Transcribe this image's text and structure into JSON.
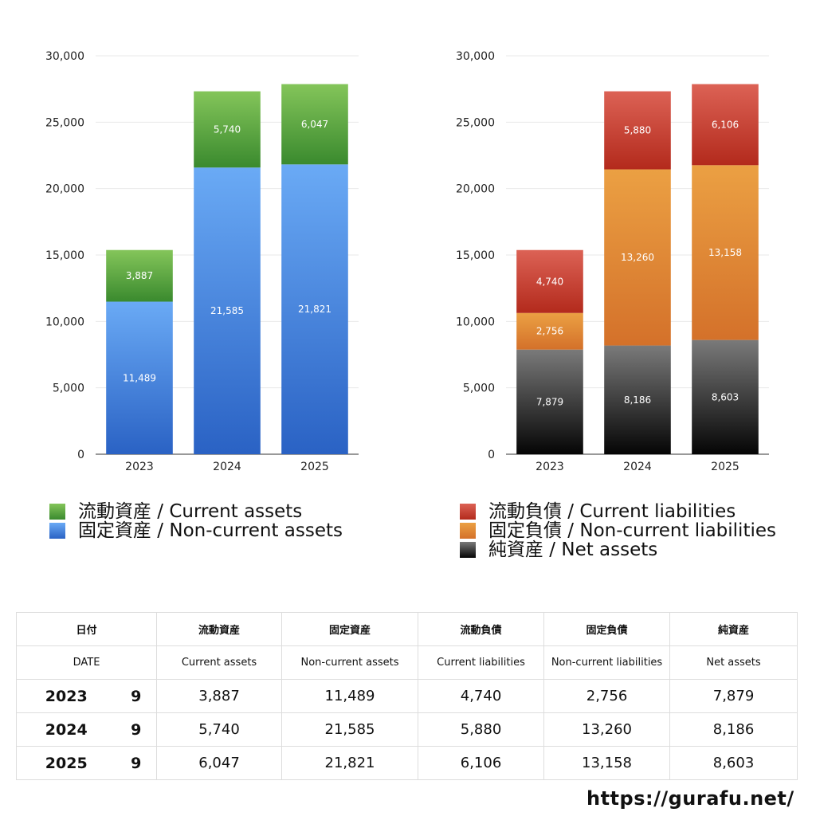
{
  "chart_data": [
    {
      "type": "bar",
      "stacked": true,
      "categories": [
        "2023",
        "2024",
        "2025"
      ],
      "ylim": [
        0,
        30000
      ],
      "yticks": [
        "0",
        "5,000",
        "10,000",
        "15,000",
        "20,000",
        "25,000",
        "30,000"
      ],
      "grid": true,
      "series": [
        {
          "name": "固定資産 / Non-current assets",
          "values": [
            11489,
            21585,
            21821
          ],
          "labels": [
            "11,489",
            "21,585",
            "21,821"
          ],
          "color_top": "#6aaaf5",
          "color_bottom": "#2a62c4"
        },
        {
          "name": "流動資産 / Current assets",
          "values": [
            3887,
            5740,
            6047
          ],
          "labels": [
            "3,887",
            "5,740",
            "6,047"
          ],
          "color_top": "#84c55a",
          "color_bottom": "#3a8a2e"
        }
      ]
    },
    {
      "type": "bar",
      "stacked": true,
      "categories": [
        "2023",
        "2024",
        "2025"
      ],
      "ylim": [
        0,
        30000
      ],
      "yticks": [
        "0",
        "5,000",
        "10,000",
        "15,000",
        "20,000",
        "25,000",
        "30,000"
      ],
      "grid": true,
      "series": [
        {
          "name": "純資産 / Net assets",
          "values": [
            7879,
            8186,
            8603
          ],
          "labels": [
            "7,879",
            "8,186",
            "8,603"
          ],
          "color_top": "#7a7a7a",
          "color_bottom": "#050505"
        },
        {
          "name": "固定負債 / Non-current liabilities",
          "values": [
            2756,
            13260,
            13158
          ],
          "labels": [
            "2,756",
            "13,260",
            "13,158"
          ],
          "color_top": "#eba043",
          "color_bottom": "#d4712a"
        },
        {
          "name": "流動負債 / Current liabilities",
          "values": [
            4740,
            5880,
            6106
          ],
          "labels": [
            "4,740",
            "5,880",
            "6,106"
          ],
          "color_top": "#dc6255",
          "color_bottom": "#b32a1c"
        }
      ]
    }
  ],
  "legend_left": [
    {
      "label": "流動資産 / Current assets",
      "color_top": "#84c55a",
      "color_bottom": "#3a8a2e"
    },
    {
      "label": "固定資産 / Non-current assets",
      "color_top": "#6aaaf5",
      "color_bottom": "#2a62c4"
    }
  ],
  "legend_right": [
    {
      "label": "流動負債 / Current liabilities",
      "color_top": "#dc6255",
      "color_bottom": "#b32a1c"
    },
    {
      "label": "固定負債 / Non-current liabilities",
      "color_top": "#eba043",
      "color_bottom": "#d4712a"
    },
    {
      "label": "純資産 / Net assets",
      "color_top": "#7a7a7a",
      "color_bottom": "#050505"
    }
  ],
  "table": {
    "header_jp": [
      "日付",
      "流動資産",
      "固定資産",
      "流動負債",
      "固定負債",
      "純資産"
    ],
    "header_en": [
      "DATE",
      "Current assets",
      "Non-current assets",
      "Current liabilities",
      "Non-current liabilities",
      "Net assets"
    ],
    "rows": [
      {
        "year": "2023",
        "month": "9",
        "cells": [
          "3,887",
          "11,489",
          "4,740",
          "2,756",
          "7,879"
        ]
      },
      {
        "year": "2024",
        "month": "9",
        "cells": [
          "5,740",
          "21,585",
          "5,880",
          "13,260",
          "8,186"
        ]
      },
      {
        "year": "2025",
        "month": "9",
        "cells": [
          "6,047",
          "21,821",
          "6,106",
          "13,158",
          "8,603"
        ]
      }
    ]
  },
  "footer": {
    "url": "https://gurafu.net/"
  }
}
